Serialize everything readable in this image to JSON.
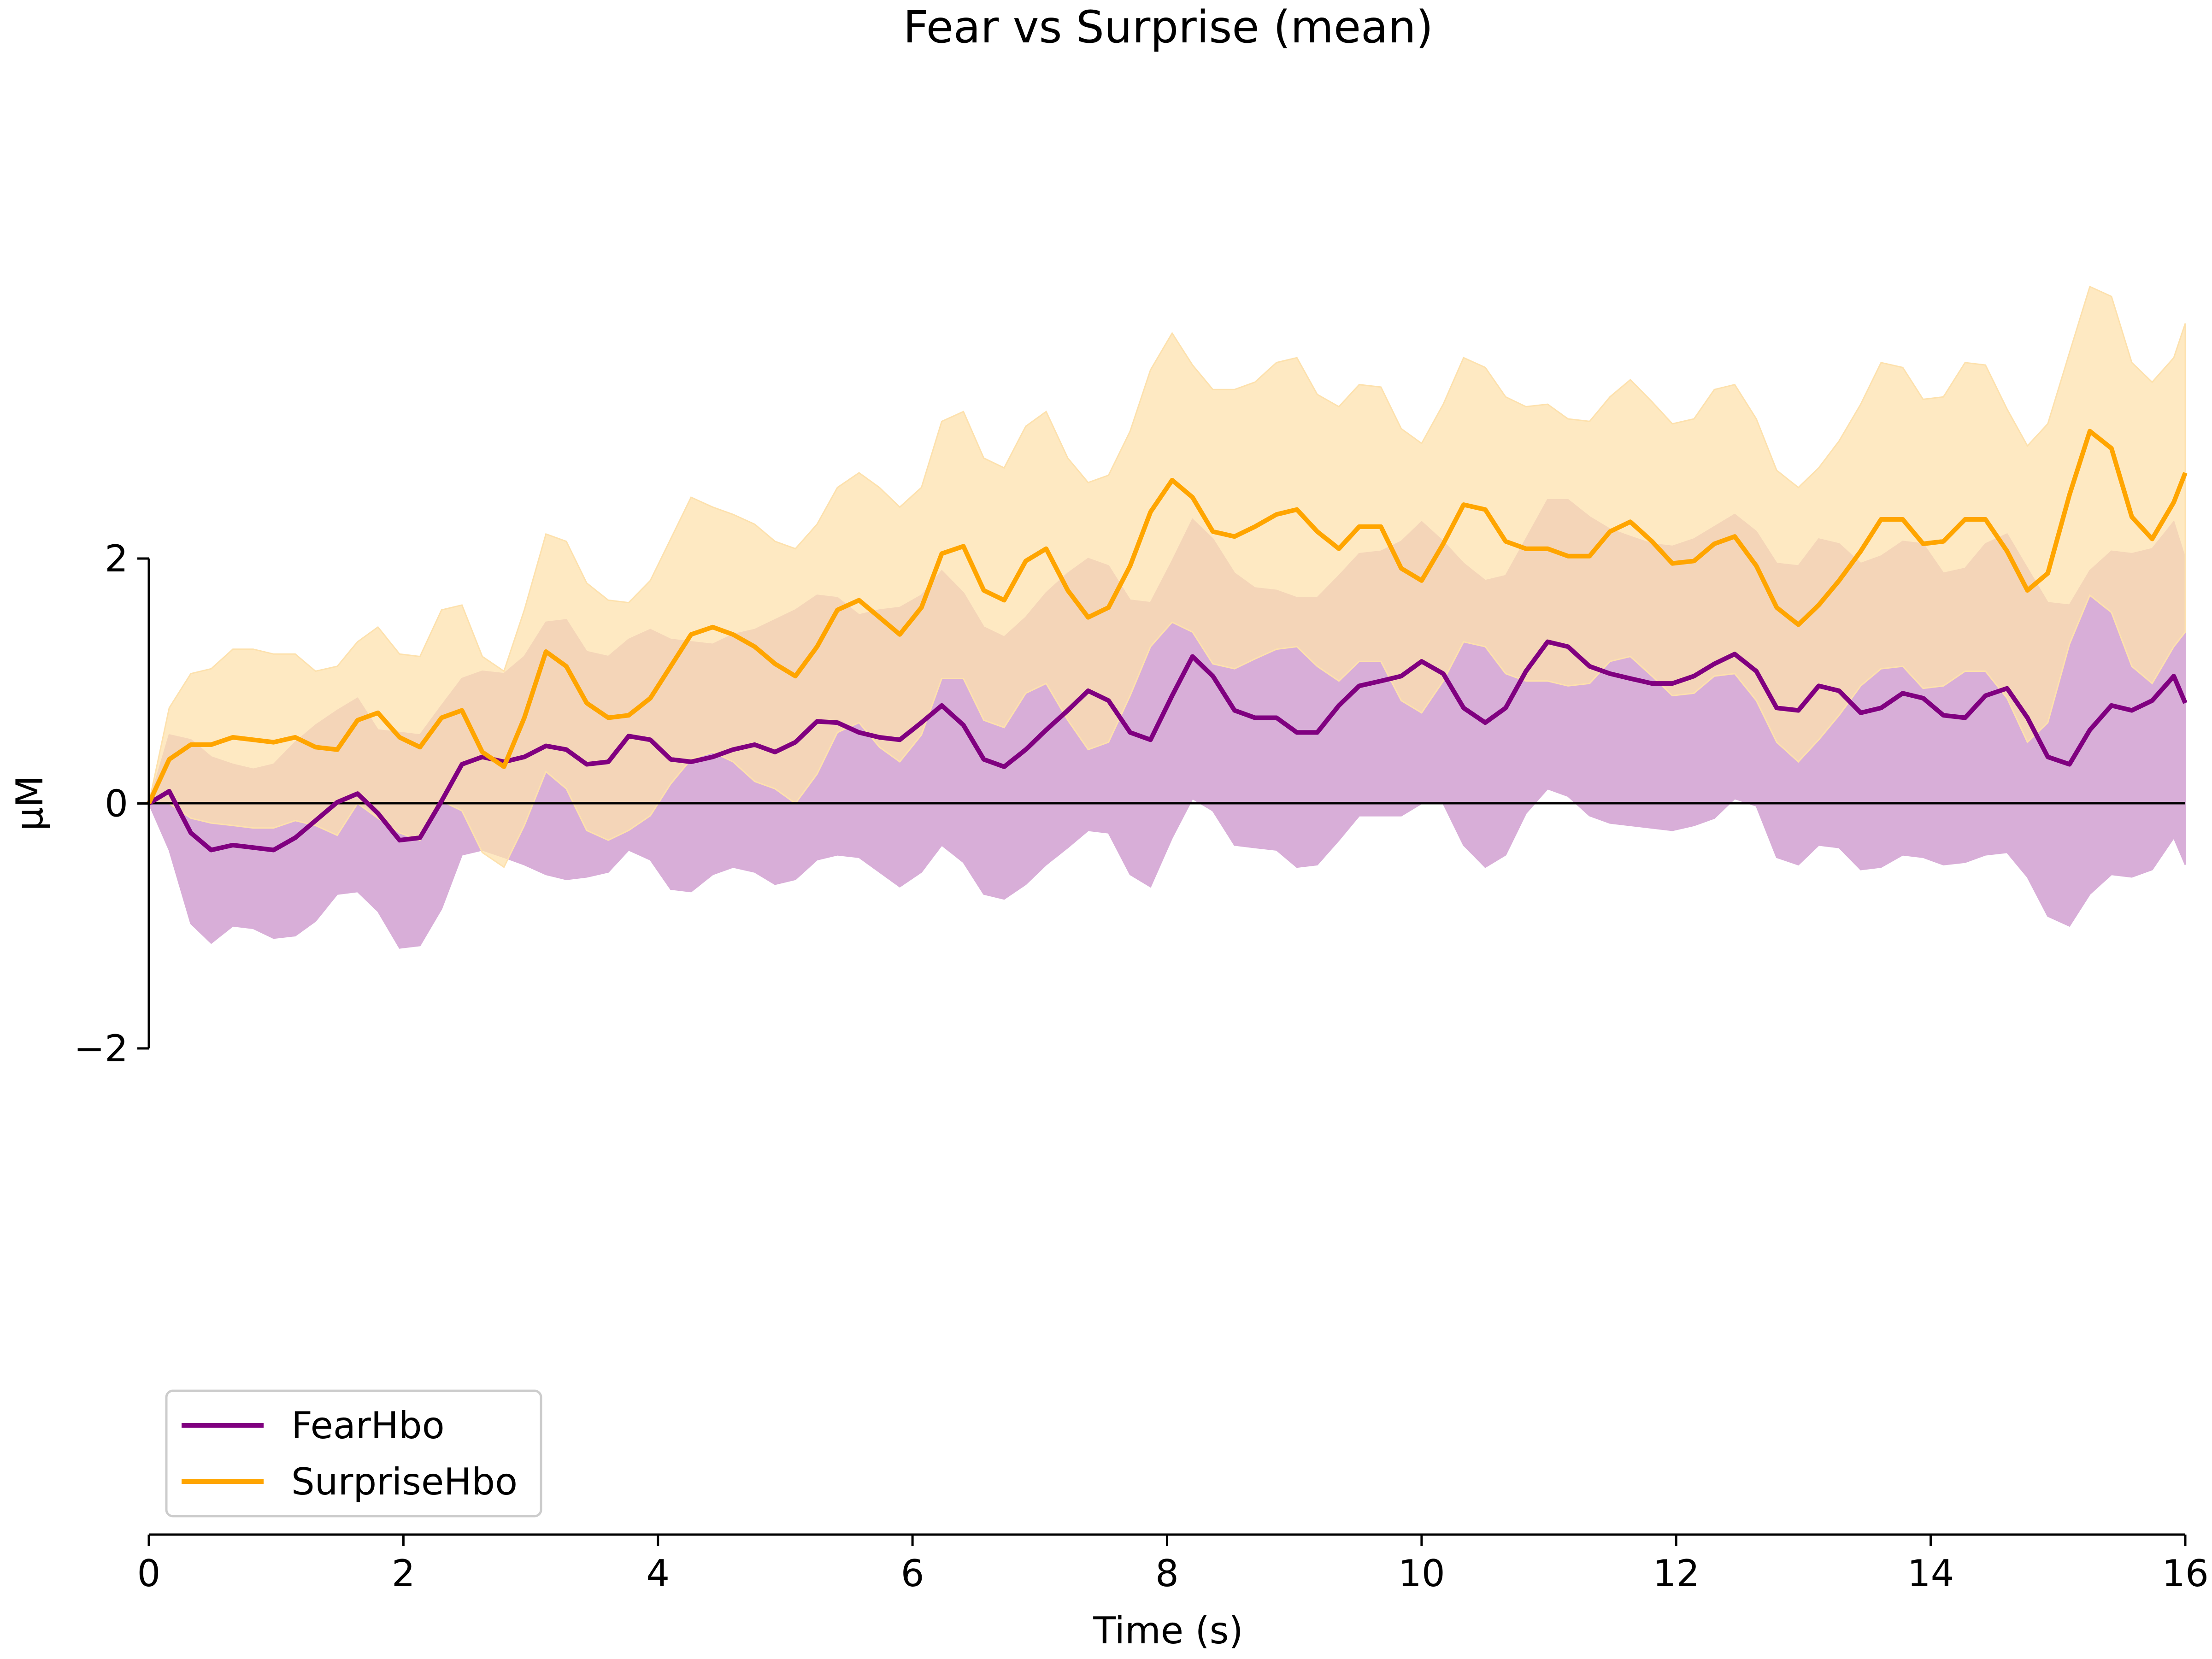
{
  "chart_data": {
    "type": "line",
    "title": "Fear vs Surprise (mean)",
    "xlabel": "Time (s)",
    "ylabel": "µM",
    "xlim": [
      0,
      16
    ],
    "ylim": [
      -2,
      2
    ],
    "x_ticks": [
      "0",
      "2",
      "4",
      "6",
      "8",
      "10",
      "12",
      "14",
      "16"
    ],
    "y_ticks": [
      "−2",
      "0",
      "2"
    ],
    "grid": false,
    "legend_position": "lower-left",
    "zero_line": true,
    "x": [
      0.0,
      0.16,
      0.33,
      0.49,
      0.66,
      0.82,
      0.98,
      1.15,
      1.31,
      1.48,
      1.64,
      1.8,
      1.97,
      2.13,
      2.3,
      2.46,
      2.62,
      2.79,
      2.95,
      3.12,
      3.28,
      3.44,
      3.61,
      3.77,
      3.94,
      4.1,
      4.26,
      4.43,
      4.59,
      4.76,
      4.92,
      5.08,
      5.25,
      5.41,
      5.58,
      5.74,
      5.9,
      6.07,
      6.23,
      6.4,
      6.56,
      6.72,
      6.89,
      7.05,
      7.22,
      7.38,
      7.54,
      7.71,
      7.87,
      8.04,
      8.2,
      8.36,
      8.53,
      8.69,
      8.86,
      9.02,
      9.18,
      9.35,
      9.51,
      9.68,
      9.84,
      10.0,
      10.17,
      10.33,
      10.5,
      10.66,
      10.82,
      10.99,
      11.15,
      11.32,
      11.48,
      11.64,
      11.81,
      11.97,
      12.14,
      12.3,
      12.46,
      12.63,
      12.79,
      12.96,
      13.12,
      13.28,
      13.45,
      13.61,
      13.78,
      13.94,
      14.1,
      14.27,
      14.43,
      14.6,
      14.76,
      14.92,
      15.09,
      15.25,
      15.42,
      15.58,
      15.74,
      15.91,
      16.0
    ],
    "series": [
      {
        "name": "FearHbo",
        "color": "#800080",
        "band_color": "#D8AED8",
        "values": [
          0.0,
          0.1,
          -0.24,
          -0.38,
          -0.34,
          -0.36,
          -0.38,
          -0.28,
          -0.14,
          0.01,
          0.08,
          -0.08,
          -0.3,
          -0.28,
          0.02,
          0.32,
          0.38,
          0.34,
          0.38,
          0.47,
          0.44,
          0.32,
          0.34,
          0.55,
          0.52,
          0.36,
          0.34,
          0.38,
          0.44,
          0.48,
          0.42,
          0.5,
          0.67,
          0.66,
          0.58,
          0.54,
          0.52,
          0.66,
          0.8,
          0.64,
          0.36,
          0.3,
          0.44,
          0.6,
          0.76,
          0.92,
          0.84,
          0.58,
          0.52,
          0.88,
          1.2,
          1.04,
          0.76,
          0.7,
          0.7,
          0.58,
          0.58,
          0.8,
          0.96,
          1.0,
          1.04,
          1.16,
          1.06,
          0.78,
          0.66,
          0.78,
          1.08,
          1.32,
          1.28,
          1.12,
          1.06,
          1.02,
          0.98,
          0.98,
          1.04,
          1.14,
          1.22,
          1.08,
          0.78,
          0.76,
          0.96,
          0.92,
          0.74,
          0.78,
          0.9,
          0.86,
          0.72,
          0.7,
          0.88,
          0.94,
          0.7,
          0.38,
          0.32,
          0.6,
          0.8,
          0.76,
          0.84,
          1.04,
          0.82
        ],
        "lower": [
          0.0,
          -0.38,
          -0.98,
          -1.14,
          -1.0,
          -1.02,
          -1.1,
          -1.08,
          -0.96,
          -0.74,
          -0.72,
          -0.88,
          -1.18,
          -1.16,
          -0.86,
          -0.42,
          -0.38,
          -0.44,
          -0.5,
          -0.58,
          -0.62,
          -0.6,
          -0.56,
          -0.38,
          -0.46,
          -0.7,
          -0.72,
          -0.58,
          -0.52,
          -0.56,
          -0.66,
          -0.62,
          -0.46,
          -0.42,
          -0.44,
          -0.56,
          -0.68,
          -0.56,
          -0.34,
          -0.48,
          -0.74,
          -0.78,
          -0.66,
          -0.5,
          -0.36,
          -0.22,
          -0.24,
          -0.58,
          -0.68,
          -0.28,
          0.04,
          -0.06,
          -0.34,
          -0.36,
          -0.38,
          -0.52,
          -0.5,
          -0.3,
          -0.1,
          -0.1,
          -0.1,
          0.0,
          0.0,
          -0.34,
          -0.52,
          -0.42,
          -0.08,
          0.12,
          0.06,
          -0.1,
          -0.16,
          -0.18,
          -0.2,
          -0.22,
          -0.18,
          -0.12,
          0.04,
          -0.02,
          -0.44,
          -0.5,
          -0.34,
          -0.36,
          -0.54,
          -0.52,
          -0.42,
          -0.44,
          -0.5,
          -0.48,
          -0.42,
          -0.4,
          -0.6,
          -0.92,
          -1.0,
          -0.74,
          -0.58,
          -0.6,
          -0.54,
          -0.28,
          -0.5
        ],
        "upper": [
          0.0,
          0.56,
          0.52,
          0.38,
          0.32,
          0.28,
          0.32,
          0.5,
          0.64,
          0.76,
          0.86,
          0.6,
          0.58,
          0.56,
          0.8,
          1.02,
          1.08,
          1.06,
          1.2,
          1.48,
          1.5,
          1.24,
          1.2,
          1.34,
          1.42,
          1.34,
          1.32,
          1.3,
          1.38,
          1.42,
          1.5,
          1.58,
          1.7,
          1.68,
          1.54,
          1.58,
          1.6,
          1.7,
          1.9,
          1.72,
          1.44,
          1.36,
          1.52,
          1.72,
          1.88,
          2.0,
          1.94,
          1.66,
          1.64,
          1.98,
          2.32,
          2.16,
          1.88,
          1.76,
          1.74,
          1.68,
          1.68,
          1.86,
          2.04,
          2.06,
          2.14,
          2.3,
          2.14,
          1.96,
          1.82,
          1.86,
          2.16,
          2.48,
          2.48,
          2.34,
          2.24,
          2.18,
          2.12,
          2.1,
          2.16,
          2.26,
          2.36,
          2.22,
          1.96,
          1.94,
          2.16,
          2.12,
          1.96,
          2.02,
          2.14,
          2.12,
          1.88,
          1.92,
          2.12,
          2.2,
          1.92,
          1.64,
          1.62,
          1.9,
          2.06,
          2.04,
          2.08,
          2.3,
          2.0
        ]
      },
      {
        "name": "SurpriseHbo",
        "color": "#FFA500",
        "band_color": "#FDE1AD",
        "values": [
          0.0,
          0.36,
          0.48,
          0.48,
          0.54,
          0.52,
          0.5,
          0.54,
          0.46,
          0.44,
          0.68,
          0.74,
          0.54,
          0.46,
          0.7,
          0.76,
          0.42,
          0.3,
          0.7,
          1.24,
          1.12,
          0.82,
          0.7,
          0.72,
          0.86,
          1.12,
          1.38,
          1.44,
          1.38,
          1.28,
          1.14,
          1.04,
          1.28,
          1.58,
          1.66,
          1.52,
          1.38,
          1.6,
          2.04,
          2.1,
          1.74,
          1.66,
          1.98,
          2.08,
          1.74,
          1.52,
          1.6,
          1.94,
          2.38,
          2.64,
          2.5,
          2.22,
          2.18,
          2.26,
          2.36,
          2.4,
          2.22,
          2.08,
          2.26,
          2.26,
          1.92,
          1.82,
          2.12,
          2.44,
          2.4,
          2.14,
          2.08,
          2.08,
          2.02,
          2.02,
          2.22,
          2.3,
          2.14,
          1.96,
          1.98,
          2.12,
          2.18,
          1.94,
          1.6,
          1.46,
          1.62,
          1.82,
          2.06,
          2.32,
          2.32,
          2.12,
          2.14,
          2.32,
          2.32,
          2.06,
          1.74,
          1.88,
          2.52,
          3.04,
          2.9,
          2.34,
          2.16,
          2.46,
          2.7
        ],
        "lower": [
          0.0,
          0.0,
          -0.12,
          -0.16,
          -0.18,
          -0.2,
          -0.2,
          -0.14,
          -0.18,
          -0.26,
          0.0,
          -0.12,
          -0.24,
          -0.3,
          0.02,
          -0.06,
          -0.4,
          -0.52,
          -0.18,
          0.26,
          0.12,
          -0.22,
          -0.3,
          -0.22,
          -0.1,
          0.16,
          0.36,
          0.42,
          0.34,
          0.18,
          0.12,
          0.0,
          0.24,
          0.58,
          0.66,
          0.46,
          0.34,
          0.56,
          1.02,
          1.02,
          0.68,
          0.62,
          0.9,
          0.98,
          0.68,
          0.44,
          0.5,
          0.88,
          1.28,
          1.48,
          1.4,
          1.14,
          1.1,
          1.18,
          1.26,
          1.28,
          1.12,
          1.0,
          1.16,
          1.16,
          0.84,
          0.74,
          1.0,
          1.32,
          1.28,
          1.06,
          1.0,
          1.0,
          0.96,
          0.98,
          1.16,
          1.2,
          1.04,
          0.88,
          0.9,
          1.04,
          1.06,
          0.84,
          0.5,
          0.34,
          0.52,
          0.72,
          0.96,
          1.1,
          1.12,
          0.94,
          0.96,
          1.08,
          1.08,
          0.86,
          0.5,
          0.66,
          1.3,
          1.7,
          1.56,
          1.12,
          0.98,
          1.28,
          1.4
        ],
        "upper": [
          0.0,
          0.78,
          1.06,
          1.1,
          1.26,
          1.26,
          1.22,
          1.22,
          1.08,
          1.12,
          1.32,
          1.44,
          1.22,
          1.2,
          1.58,
          1.62,
          1.2,
          1.08,
          1.58,
          2.2,
          2.14,
          1.8,
          1.66,
          1.64,
          1.82,
          2.16,
          2.5,
          2.42,
          2.36,
          2.28,
          2.14,
          2.08,
          2.28,
          2.58,
          2.7,
          2.58,
          2.42,
          2.58,
          3.12,
          3.2,
          2.82,
          2.74,
          3.08,
          3.2,
          2.82,
          2.62,
          2.68,
          3.04,
          3.54,
          3.84,
          3.58,
          3.38,
          3.38,
          3.44,
          3.6,
          3.64,
          3.34,
          3.24,
          3.42,
          3.4,
          3.06,
          2.94,
          3.26,
          3.64,
          3.56,
          3.32,
          3.24,
          3.26,
          3.14,
          3.12,
          3.32,
          3.46,
          3.28,
          3.1,
          3.14,
          3.38,
          3.42,
          3.14,
          2.72,
          2.58,
          2.74,
          2.96,
          3.26,
          3.6,
          3.56,
          3.3,
          3.32,
          3.6,
          3.58,
          3.22,
          2.92,
          3.1,
          3.68,
          4.22,
          4.14,
          3.6,
          3.44,
          3.64,
          3.92
        ]
      }
    ]
  }
}
